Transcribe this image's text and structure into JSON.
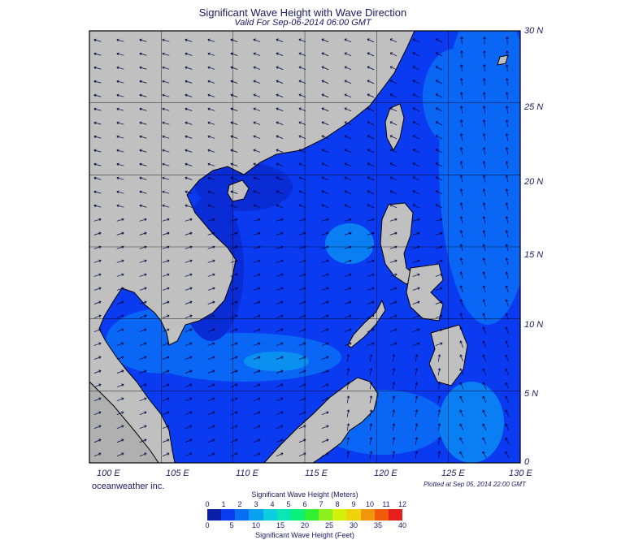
{
  "header": {
    "title": "Significant Wave Height with Wave Direction",
    "subtitle": "Valid For Sep-06-2014 06:00 GMT"
  },
  "map": {
    "region": "South China Sea",
    "lon_labels": [
      "100 E",
      "105 E",
      "110 E",
      "115 E",
      "120 E",
      "125 E",
      "130 E"
    ],
    "lat_labels": [
      "30 N",
      "25 N",
      "20 N",
      "15 N",
      "10 N",
      "5 N",
      "0"
    ],
    "lon_range": [
      100,
      130
    ],
    "lat_range": [
      0,
      30
    ],
    "land_color": "#c0c0c0",
    "sea_color": "#0a3bf0",
    "arrow_color": "#000040"
  },
  "footer": {
    "credit": "oceanweather inc.",
    "plotted": "Plotted at Sep 05, 2014 22:00 GMT"
  },
  "colorbar": {
    "title_meters": "Significant Wave Height (Meters)",
    "title_feet": "Significant Wave Height (Feet)",
    "meters_ticks": [
      "0",
      "1",
      "2",
      "3",
      "4",
      "5",
      "6",
      "7",
      "8",
      "9",
      "10",
      "11",
      "12"
    ],
    "feet_ticks": [
      "0",
      "5",
      "10",
      "15",
      "20",
      "25",
      "30",
      "35",
      "40"
    ],
    "colors": [
      "#0a1ea8",
      "#0a3cf0",
      "#0a6ef5",
      "#0aa0f0",
      "#0acde0",
      "#0ae6b4",
      "#0af078",
      "#32f032",
      "#8cf01e",
      "#d2f00a",
      "#f0d20a",
      "#f0960a",
      "#f05a0a",
      "#e61e1e"
    ]
  }
}
